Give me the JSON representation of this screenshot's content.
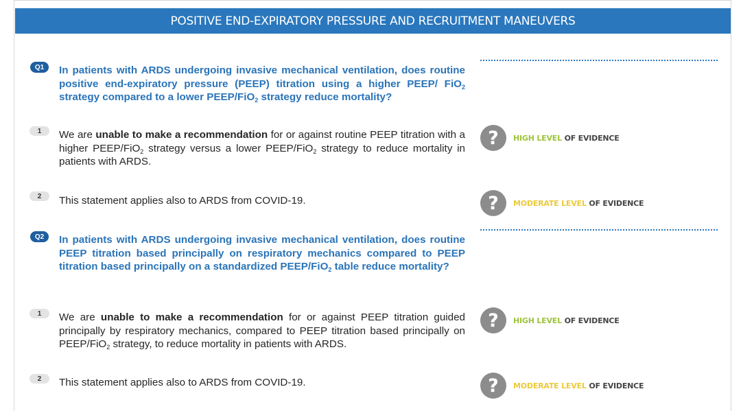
{
  "banner": {
    "title": "POSITIVE END-EXPIRATORY PRESSURE AND RECRUITMENT MANEUVERS"
  },
  "q1": {
    "badge": "Q1",
    "question": {
      "part1": "In patients with ARDS undergoing invasive mechanical ventilation, does routine positive end-expiratory pressure (PEEP) titration using a higher PEEP/ FiO",
      "sub1": "2",
      "part2": " strategy compared to a lower PEEP/FiO",
      "sub2": "2",
      "part3": " strategy reduce mortality?"
    },
    "statements": [
      {
        "badge": "1",
        "pre": "We are ",
        "bold": "unable to make a recommendation",
        "mid": " for or against routine PEEP titration with a higher PEEP/FiO",
        "sub1": "2",
        "mid2": " strategy versus a lower PEEP/FiO",
        "sub2": "2",
        "post": " strategy to reduce mortality in patients with ARDS.",
        "evidence_level": "HIGH LEVEL",
        "evidence_rest": " OF EVIDENCE"
      },
      {
        "badge": "2",
        "text": "This statement applies also to ARDS from COVID-19.",
        "evidence_level": "MODERATE LEVEL",
        "evidence_rest": " OF EVIDENCE"
      }
    ]
  },
  "q2": {
    "badge": "Q2",
    "question": {
      "part1": "In patients with ARDS undergoing invasive mechanical ventilation, does routine PEEP titration based principally on respiratory mechanics compared to PEEP titration based principally on a standardized PEEP/FiO",
      "sub1": "2",
      "part2": " table reduce mortality?"
    },
    "statements": [
      {
        "badge": "1",
        "pre": "We are ",
        "bold": "unable to make a recommendation",
        "mid": " for or against PEEP titration guided principally by respiratory mechanics, compared to PEEP titration based principally on PEEP/FiO",
        "sub1": "2",
        "post": " strategy, to reduce mortality in patients with ARDS.",
        "evidence_level": "HIGH LEVEL",
        "evidence_rest": " OF EVIDENCE"
      },
      {
        "badge": "2",
        "text": "This statement applies also to ARDS from COVID-19.",
        "evidence_level": "MODERATE LEVEL",
        "evidence_rest": " OF EVIDENCE"
      }
    ]
  },
  "icons": {
    "evidence": "question-mark-icon",
    "glyph": "?"
  },
  "colors": {
    "banner": "#2a77bd",
    "question_text": "#2a74b8",
    "high_level": "#9ec33c",
    "moderate_level": "#ecc93a",
    "icon": "#8c8c8c"
  }
}
